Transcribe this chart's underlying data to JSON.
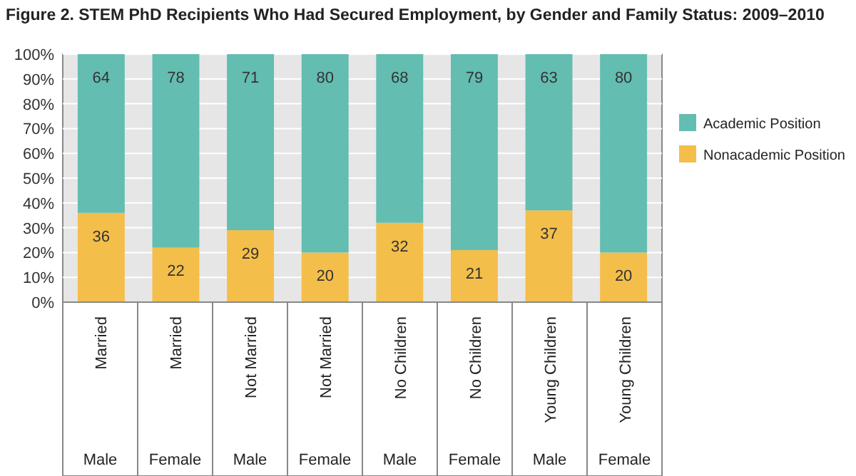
{
  "chart_data": {
    "type": "bar",
    "stacked": true,
    "title": "Figure 2. STEM PhD Recipients Who Had Secured Employment, by Gender and Family Status: 2009–2010",
    "categories": [
      "Married\nMale",
      "Married\nFemale",
      "Not Married\nMale",
      "Not Married\nFemale",
      "No Children\nMale",
      "No Children\nFemale",
      "Young Children\nMale",
      "Young Children\nFemale"
    ],
    "series": [
      {
        "name": "Nonacademic Position",
        "color": "#f4be4a",
        "values": [
          36,
          22,
          29,
          20,
          32,
          21,
          37,
          20
        ]
      },
      {
        "name": "Academic Position",
        "color": "#63bdb1",
        "values": [
          64,
          78,
          71,
          80,
          68,
          79,
          63,
          80
        ]
      }
    ],
    "data_labels": true,
    "ylim": [
      0,
      100
    ],
    "yticks": [
      {
        "value": 0,
        "label": "0%"
      },
      {
        "value": 10,
        "label": "10%"
      },
      {
        "value": 20,
        "label": "20%"
      },
      {
        "value": 30,
        "label": "30%"
      },
      {
        "value": 40,
        "label": "40%"
      },
      {
        "value": 50,
        "label": "50%"
      },
      {
        "value": 60,
        "label": "60%"
      },
      {
        "value": 70,
        "label": "70%"
      },
      {
        "value": 80,
        "label": "80%"
      },
      {
        "value": 90,
        "label": "90%"
      },
      {
        "value": 100,
        "label": "100%"
      }
    ],
    "grid": "y",
    "legend": "right"
  }
}
